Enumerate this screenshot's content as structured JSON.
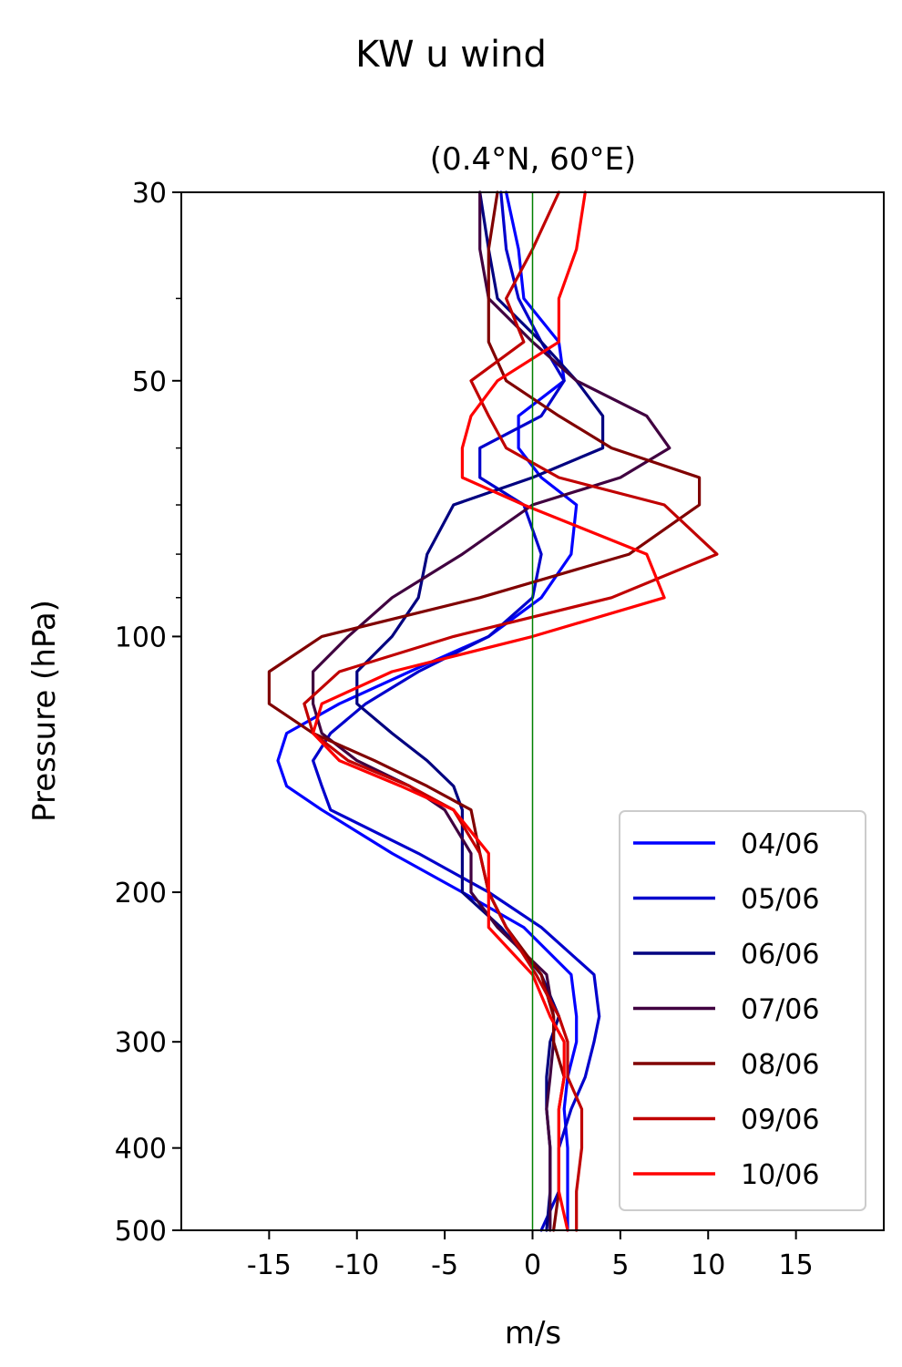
{
  "chart_data": {
    "type": "line",
    "title": "KW u wind",
    "subtitle": "(0.4°N, 60°E)",
    "xlabel": "m/s",
    "ylabel": "Pressure (hPa)",
    "xlim": [
      -20,
      20
    ],
    "ylim": [
      500,
      30
    ],
    "yscale": "log",
    "y_inverted": true,
    "xticks": [
      -15,
      -10,
      -5,
      0,
      5,
      10,
      15
    ],
    "xtick_labels": [
      "-15",
      "-10",
      "-5",
      "0",
      "5",
      "10",
      "15"
    ],
    "yticks": [
      30,
      50,
      100,
      200,
      300,
      400,
      500
    ],
    "ytick_labels": [
      "30",
      "50",
      "100",
      "200",
      "300",
      "400",
      "500"
    ],
    "zero_line_color": "#008000",
    "grid": false,
    "legend_position": "lower-right",
    "pressure_levels": [
      30,
      35,
      40,
      45,
      50,
      55,
      60,
      65,
      70,
      80,
      90,
      100,
      110,
      120,
      130,
      140,
      150,
      160,
      180,
      200,
      220,
      250,
      280,
      300,
      330,
      360,
      400,
      450,
      500
    ],
    "series": [
      {
        "name": "04/06",
        "color": "#0000ff",
        "values": [
          -1.5,
          -0.8,
          -0.5,
          1.5,
          1.8,
          -0.8,
          -0.8,
          0.5,
          2.5,
          2.2,
          0.5,
          -2.5,
          -7,
          -11,
          -14,
          -14.5,
          -14,
          -12,
          -8,
          -4,
          -0.5,
          2.2,
          2.5,
          2.5,
          2.0,
          1.8,
          2.0,
          2.0,
          2.0
        ]
      },
      {
        "name": "05/06",
        "color": "#0000cc",
        "values": [
          -1.8,
          -1.5,
          -0.8,
          0.5,
          1.8,
          0.5,
          -3,
          -3,
          -0.5,
          0.5,
          0,
          -2.5,
          -6.5,
          -9.5,
          -11.5,
          -12.5,
          -12,
          -11.5,
          -6.5,
          -2.5,
          0.5,
          3.5,
          3.8,
          3.5,
          3.0,
          2.2,
          1.5,
          1.5,
          0.5
        ]
      },
      {
        "name": "06/06",
        "color": "#000080",
        "values": [
          -3,
          -2.5,
          -2,
          0.5,
          2.5,
          4,
          4,
          0,
          -4.5,
          -6,
          -6.5,
          -8,
          -10,
          -10,
          -8,
          -6,
          -4.5,
          -4,
          -4,
          -4,
          -1.8,
          0.5,
          1.5,
          1.0,
          0.8,
          0.8,
          1.0,
          1.0,
          0.8
        ]
      },
      {
        "name": "07/06",
        "color": "#400040",
        "values": [
          -3,
          -3,
          -2.5,
          0,
          2.5,
          6.5,
          7.8,
          5,
          0,
          -4,
          -8,
          -10.5,
          -12.5,
          -12.5,
          -12,
          -10,
          -7,
          -5,
          -3.5,
          -3.5,
          -2,
          0.8,
          1.2,
          1.2,
          1.0,
          0.8,
          1.0,
          1.0,
          1.0
        ]
      },
      {
        "name": "08/06",
        "color": "#800000",
        "values": [
          -2,
          -2.5,
          -2.5,
          -2.5,
          -1.5,
          1.5,
          4.5,
          9.5,
          9.5,
          5.5,
          -3,
          -12,
          -15,
          -15,
          -12.5,
          -9,
          -6,
          -3.5,
          -3,
          -2.5,
          -1.5,
          0.5,
          1.2,
          1.2,
          1.8,
          1.5,
          1.5,
          1.5,
          1.2
        ]
      },
      {
        "name": "09/06",
        "color": "#c00000",
        "values": [
          1.5,
          0,
          -1.5,
          -0.5,
          -3.5,
          -2.5,
          -1.5,
          1.5,
          7.5,
          10.5,
          4.5,
          -4.5,
          -11,
          -13,
          -12.5,
          -10.5,
          -7,
          -4.5,
          -3,
          -2.5,
          -1.5,
          0.2,
          1.5,
          2.0,
          2.0,
          2.8,
          2.8,
          2.5,
          2.5
        ]
      },
      {
        "name": "10/06",
        "color": "#ff0000",
        "values": [
          3,
          2.5,
          1.5,
          1.5,
          -2,
          -3.5,
          -4,
          -4,
          -0.5,
          6.5,
          7.5,
          0,
          -8,
          -12,
          -12.5,
          -11,
          -7.5,
          -4.5,
          -2.5,
          -2.5,
          -2.5,
          0,
          1.0,
          1.8,
          1.8,
          1.5,
          1.5,
          1.5,
          2.0
        ]
      }
    ]
  }
}
